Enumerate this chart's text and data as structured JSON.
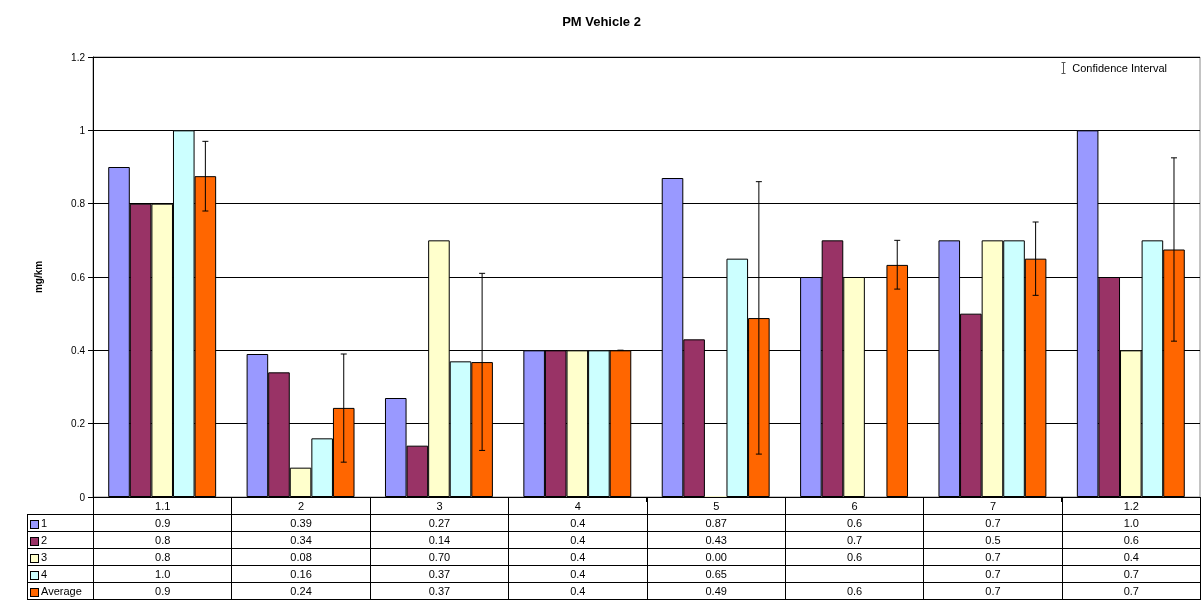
{
  "chart_data": {
    "type": "bar",
    "title": "PM Vehicle 2",
    "ylabel": "mg/km",
    "categories": [
      "1.1",
      "2",
      "3",
      "4",
      "5",
      "6",
      "7",
      "1.2"
    ],
    "series": [
      {
        "name": "1",
        "color": "#9999ff",
        "values": [
          0.9,
          0.39,
          0.27,
          0.4,
          0.87,
          0.6,
          0.7,
          1.0
        ],
        "value_labels": [
          "0.9",
          "0.39",
          "0.27",
          "0.4",
          "0.87",
          "0.6",
          "0.7",
          "1.0"
        ]
      },
      {
        "name": "2",
        "color": "#993366",
        "values": [
          0.8,
          0.34,
          0.14,
          0.4,
          0.43,
          0.7,
          0.5,
          0.6
        ],
        "value_labels": [
          "0.8",
          "0.34",
          "0.14",
          "0.4",
          "0.43",
          "0.7",
          "0.5",
          "0.6"
        ]
      },
      {
        "name": "3",
        "color": "#ffffcc",
        "values": [
          0.8,
          0.08,
          0.7,
          0.4,
          0,
          0.6,
          0.7,
          0.4
        ],
        "value_labels": [
          "0.8",
          "0.08",
          "0.70",
          "0.4",
          "0.00",
          "0.6",
          "0.7",
          "0.4"
        ]
      },
      {
        "name": "4",
        "color": "#ccffff",
        "values": [
          1.0,
          0.16,
          0.37,
          0.4,
          0.65,
          null,
          0.7,
          0.7
        ],
        "value_labels": [
          "1.0",
          "0.16",
          "0.37",
          "0.4",
          "0.65",
          null,
          "0.7",
          "0.7"
        ]
      },
      {
        "name": "Average",
        "color": "#ff6600",
        "values": [
          0.875,
          0.243,
          0.368,
          0.4,
          0.488,
          0.633,
          0.65,
          0.675
        ],
        "value_labels": [
          "0.9",
          "0.24",
          "0.37",
          "0.4",
          "0.49",
          "0.6",
          "0.7",
          "0.7"
        ],
        "errors": [
          [
            0.78,
            0.97
          ],
          [
            0.095,
            0.39
          ],
          [
            0.127,
            0.61
          ],
          [
            0.4,
            0.4
          ],
          [
            0.117,
            0.86
          ],
          [
            0.567,
            0.7
          ],
          [
            0.55,
            0.75
          ],
          [
            0.425,
            0.925
          ]
        ]
      }
    ],
    "ylim": [
      0,
      1.2
    ],
    "yticks": [
      0,
      0.2,
      0.4,
      0.6,
      0.8,
      1,
      1.2
    ],
    "grid": "y",
    "legend": "bottom left",
    "annotations": [
      "Confidence Interval"
    ]
  }
}
